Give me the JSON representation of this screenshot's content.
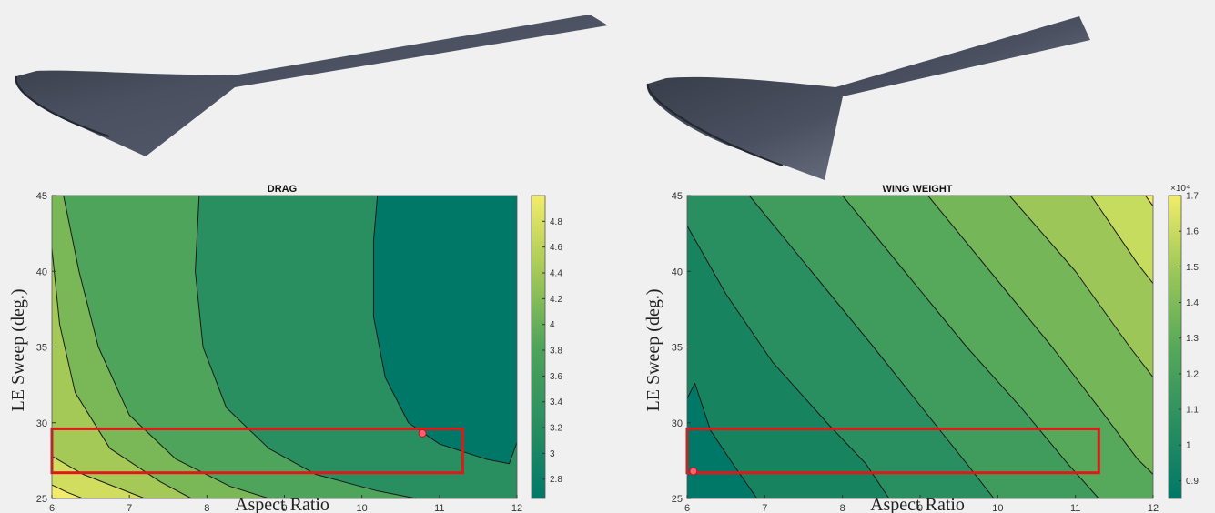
{
  "colors": {
    "background": "#f0f0f0",
    "wing_surface": "#4a5060",
    "highlight_box": "#e01818",
    "optimum_marker": "#ff6070",
    "contour_line": "#1a1a1a",
    "colormap": [
      "#007868",
      "#2a8f60",
      "#4ea45a",
      "#7ab756",
      "#b5cf5a",
      "#f2ec6a"
    ]
  },
  "chart_data": [
    {
      "type": "heatmap",
      "subtype": "contour",
      "title": "DRAG",
      "xlabel": "Aspect Ratio",
      "ylabel": "LE Sweep (deg.)",
      "xlim": [
        6,
        12
      ],
      "ylim": [
        25,
        45
      ],
      "x_ticks": [
        "6",
        "7",
        "8",
        "9",
        "10",
        "11",
        "12"
      ],
      "y_ticks": [
        "25",
        "30",
        "35",
        "40",
        "45"
      ],
      "colorbar": {
        "range": [
          2.65,
          5.0
        ],
        "ticks": [
          "2.8",
          "3",
          "3.2",
          "3.4",
          "3.6",
          "3.8",
          "4",
          "4.2",
          "4.4",
          "4.6",
          "4.8"
        ],
        "multiplier": ""
      },
      "contour_levels": [
        {
          "level": 3.0,
          "points": [
            [
              10.2,
              45
            ],
            [
              10.15,
              42
            ],
            [
              10.15,
              37
            ],
            [
              10.3,
              33
            ],
            [
              10.6,
              30
            ],
            [
              11.0,
              28.6
            ],
            [
              11.6,
              27.6
            ],
            [
              11.9,
              27.3
            ],
            [
              12,
              28.7
            ]
          ]
        },
        {
          "level": 3.3,
          "points": [
            [
              7.9,
              45
            ],
            [
              7.85,
              40
            ],
            [
              7.95,
              35
            ],
            [
              8.25,
              31
            ],
            [
              8.8,
              28.3
            ],
            [
              9.4,
              26.6
            ],
            [
              10.2,
              25.5
            ],
            [
              10.7,
              25
            ]
          ]
        },
        {
          "level": 3.6,
          "points": [
            [
              6.15,
              45
            ],
            [
              6.35,
              40
            ],
            [
              6.6,
              35
            ],
            [
              7.0,
              30.5
            ],
            [
              7.6,
              27.6
            ],
            [
              8.3,
              25.8
            ],
            [
              8.8,
              25
            ]
          ]
        },
        {
          "level": 4.0,
          "points": [
            [
              6,
              41.5
            ],
            [
              6.1,
              36.5
            ],
            [
              6.3,
              32
            ],
            [
              6.75,
              28.3
            ],
            [
              7.4,
              26.1
            ],
            [
              7.8,
              25
            ]
          ]
        },
        {
          "level": 4.4,
          "points": [
            [
              6,
              27.8
            ],
            [
              6.4,
              26.6
            ],
            [
              6.9,
              25.6
            ],
            [
              7.2,
              25
            ]
          ]
        },
        {
          "level": 4.8,
          "points": [
            [
              6,
              25.9
            ],
            [
              6.2,
              25.4
            ],
            [
              6.4,
              25
            ]
          ]
        }
      ],
      "fill_colors": [
        "#007868",
        "#2a8f60",
        "#4ea45a",
        "#7ab756",
        "#a4c956",
        "#d0dd5e",
        "#f2ec6a"
      ],
      "highlight_region": {
        "x": [
          6,
          11.3
        ],
        "y": [
          26.7,
          29.6
        ]
      },
      "optimum_point": {
        "x": 10.78,
        "y": 29.3
      }
    },
    {
      "type": "heatmap",
      "subtype": "contour",
      "title": "WING WEIGHT",
      "xlabel": "Aspect Ratio",
      "ylabel": "LE Sweep (deg.)",
      "xlim": [
        6,
        12
      ],
      "ylim": [
        25,
        45
      ],
      "x_ticks": [
        "6",
        "7",
        "8",
        "9",
        "10",
        "11",
        "12"
      ],
      "y_ticks": [
        "25",
        "30",
        "35",
        "40",
        "45"
      ],
      "colorbar": {
        "range": [
          0.85,
          1.7
        ],
        "ticks": [
          "0.9",
          "1",
          "1.1",
          "1.2",
          "1.3",
          "1.4",
          "1.5",
          "1.6",
          "1.7"
        ],
        "multiplier": "×10⁴"
      },
      "contour_levels": [
        {
          "level": 0.9,
          "points": [
            [
              6,
              31.6
            ],
            [
              6.1,
              32.6
            ],
            [
              6.3,
              29.5
            ],
            [
              6.6,
              27.2
            ],
            [
              6.9,
              25
            ]
          ]
        },
        {
          "level": 1.0,
          "points": [
            [
              6,
              43
            ],
            [
              6.5,
              38.5
            ],
            [
              7.1,
              34
            ],
            [
              7.8,
              30
            ],
            [
              8.3,
              27.3
            ],
            [
              8.6,
              25
            ]
          ]
        },
        {
          "level": 1.1,
          "points": [
            [
              6.8,
              45
            ],
            [
              7.6,
              40
            ],
            [
              8.4,
              35
            ],
            [
              9.1,
              30.5
            ],
            [
              9.6,
              27.3
            ],
            [
              9.95,
              25
            ]
          ]
        },
        {
          "level": 1.2,
          "points": [
            [
              8.0,
              45
            ],
            [
              8.8,
              40
            ],
            [
              9.6,
              35
            ],
            [
              10.3,
              31
            ],
            [
              10.9,
              27.3
            ],
            [
              11.3,
              25
            ]
          ]
        },
        {
          "level": 1.3,
          "points": [
            [
              9.1,
              45
            ],
            [
              9.9,
              40
            ],
            [
              10.7,
              35
            ],
            [
              11.3,
              31
            ],
            [
              11.8,
              27.6
            ],
            [
              12,
              26.6
            ]
          ]
        },
        {
          "level": 1.4,
          "points": [
            [
              10.15,
              45
            ],
            [
              11.0,
              40
            ],
            [
              11.7,
              35
            ],
            [
              12,
              33
            ]
          ]
        },
        {
          "level": 1.5,
          "points": [
            [
              11.2,
              45
            ],
            [
              11.8,
              40.5
            ],
            [
              12,
              39.2
            ]
          ]
        },
        {
          "level": 1.6,
          "points": [
            [
              11.9,
              45
            ],
            [
              12,
              44.3
            ]
          ]
        }
      ],
      "fill_colors": [
        "#007868",
        "#17845f",
        "#2a8f60",
        "#3f9c5c",
        "#56a95a",
        "#74b658",
        "#9cc758",
        "#c6dc5f",
        "#f2ec6a"
      ],
      "highlight_region": {
        "x": [
          6,
          11.3
        ],
        "y": [
          26.7,
          29.6
        ]
      },
      "optimum_point": {
        "x": 6.08,
        "y": 26.8
      }
    }
  ]
}
